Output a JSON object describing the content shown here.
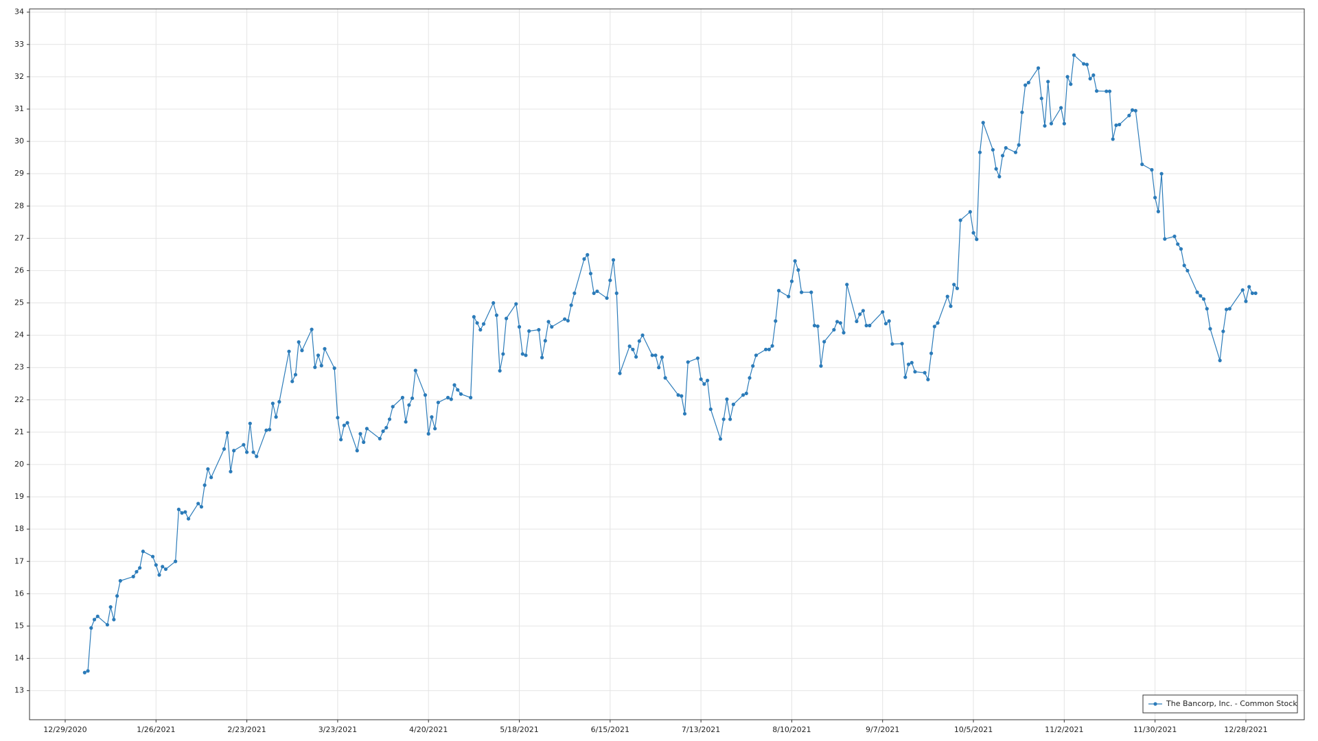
{
  "chart_data": {
    "type": "line",
    "x": [
      "1/4/2021",
      "1/5/2021",
      "1/6/2021",
      "1/7/2021",
      "1/8/2021",
      "1/11/2021",
      "1/12/2021",
      "1/13/2021",
      "1/14/2021",
      "1/15/2021",
      "1/19/2021",
      "1/20/2021",
      "1/21/2021",
      "1/22/2021",
      "1/25/2021",
      "1/26/2021",
      "1/27/2021",
      "1/28/2021",
      "1/29/2021",
      "2/1/2021",
      "2/2/2021",
      "2/3/2021",
      "2/4/2021",
      "2/5/2021",
      "2/8/2021",
      "2/9/2021",
      "2/10/2021",
      "2/11/2021",
      "2/12/2021",
      "2/16/2021",
      "2/17/2021",
      "2/18/2021",
      "2/19/2021",
      "2/22/2021",
      "2/23/2021",
      "2/24/2021",
      "2/25/2021",
      "2/26/2021",
      "3/1/2021",
      "3/2/2021",
      "3/3/2021",
      "3/4/2021",
      "3/5/2021",
      "3/8/2021",
      "3/9/2021",
      "3/10/2021",
      "3/11/2021",
      "3/12/2021",
      "3/15/2021",
      "3/16/2021",
      "3/17/2021",
      "3/18/2021",
      "3/19/2021",
      "3/22/2021",
      "3/23/2021",
      "3/24/2021",
      "3/25/2021",
      "3/26/2021",
      "3/29/2021",
      "3/30/2021",
      "3/31/2021",
      "4/1/2021",
      "4/5/2021",
      "4/6/2021",
      "4/7/2021",
      "4/8/2021",
      "4/9/2021",
      "4/12/2021",
      "4/13/2021",
      "4/14/2021",
      "4/15/2021",
      "4/16/2021",
      "4/19/2021",
      "4/20/2021",
      "4/21/2021",
      "4/22/2021",
      "4/23/2021",
      "4/26/2021",
      "4/27/2021",
      "4/28/2021",
      "4/29/2021",
      "4/30/2021",
      "5/3/2021",
      "5/4/2021",
      "5/5/2021",
      "5/6/2021",
      "5/7/2021",
      "5/10/2021",
      "5/11/2021",
      "5/12/2021",
      "5/13/2021",
      "5/14/2021",
      "5/17/2021",
      "5/18/2021",
      "5/19/2021",
      "5/20/2021",
      "5/21/2021",
      "5/24/2021",
      "5/25/2021",
      "5/26/2021",
      "5/27/2021",
      "5/28/2021",
      "6/1/2021",
      "6/2/2021",
      "6/3/2021",
      "6/4/2021",
      "6/7/2021",
      "6/8/2021",
      "6/9/2021",
      "6/10/2021",
      "6/11/2021",
      "6/14/2021",
      "6/15/2021",
      "6/16/2021",
      "6/17/2021",
      "6/18/2021",
      "6/21/2021",
      "6/22/2021",
      "6/23/2021",
      "6/24/2021",
      "6/25/2021",
      "6/28/2021",
      "6/29/2021",
      "6/30/2021",
      "7/1/2021",
      "7/2/2021",
      "7/6/2021",
      "7/7/2021",
      "7/8/2021",
      "7/9/2021",
      "7/12/2021",
      "7/13/2021",
      "7/14/2021",
      "7/15/2021",
      "7/16/2021",
      "7/19/2021",
      "7/20/2021",
      "7/21/2021",
      "7/22/2021",
      "7/23/2021",
      "7/26/2021",
      "7/27/2021",
      "7/28/2021",
      "7/29/2021",
      "7/30/2021",
      "8/2/2021",
      "8/3/2021",
      "8/4/2021",
      "8/5/2021",
      "8/6/2021",
      "8/9/2021",
      "8/10/2021",
      "8/11/2021",
      "8/12/2021",
      "8/13/2021",
      "8/16/2021",
      "8/17/2021",
      "8/18/2021",
      "8/19/2021",
      "8/20/2021",
      "8/23/2021",
      "8/24/2021",
      "8/25/2021",
      "8/26/2021",
      "8/27/2021",
      "8/30/2021",
      "8/31/2021",
      "9/1/2021",
      "9/2/2021",
      "9/3/2021",
      "9/7/2021",
      "9/8/2021",
      "9/9/2021",
      "9/10/2021",
      "9/13/2021",
      "9/14/2021",
      "9/15/2021",
      "9/16/2021",
      "9/17/2021",
      "9/20/2021",
      "9/21/2021",
      "9/22/2021",
      "9/23/2021",
      "9/24/2021",
      "9/27/2021",
      "9/28/2021",
      "9/29/2021",
      "9/30/2021",
      "10/1/2021",
      "10/4/2021",
      "10/5/2021",
      "10/6/2021",
      "10/7/2021",
      "10/8/2021",
      "10/11/2021",
      "10/12/2021",
      "10/13/2021",
      "10/14/2021",
      "10/15/2021",
      "10/18/2021",
      "10/19/2021",
      "10/20/2021",
      "10/21/2021",
      "10/22/2021",
      "10/25/2021",
      "10/26/2021",
      "10/27/2021",
      "10/28/2021",
      "10/29/2021",
      "11/1/2021",
      "11/2/2021",
      "11/3/2021",
      "11/4/2021",
      "11/5/2021",
      "11/8/2021",
      "11/9/2021",
      "11/10/2021",
      "11/11/2021",
      "11/12/2021",
      "11/15/2021",
      "11/16/2021",
      "11/17/2021",
      "11/18/2021",
      "11/19/2021",
      "11/22/2021",
      "11/23/2021",
      "11/24/2021",
      "11/26/2021",
      "11/29/2021",
      "11/30/2021",
      "12/1/2021",
      "12/2/2021",
      "12/3/2021",
      "12/6/2021",
      "12/7/2021",
      "12/8/2021",
      "12/9/2021",
      "12/10/2021",
      "12/13/2021",
      "12/14/2021",
      "12/15/2021",
      "12/16/2021",
      "12/17/2021",
      "12/20/2021",
      "12/21/2021",
      "12/22/2021",
      "12/23/2021",
      "12/27/2021",
      "12/28/2021",
      "12/29/2021",
      "12/30/2021",
      "12/31/2021"
    ],
    "series": [
      {
        "name": "The Bancorp, Inc. - Common Stock",
        "color": "#2b7bb9",
        "values": [
          13.56,
          13.61,
          14.94,
          15.2,
          15.3,
          15.04,
          15.59,
          15.2,
          15.93,
          16.4,
          16.53,
          16.68,
          16.8,
          17.31,
          17.15,
          16.89,
          16.58,
          16.84,
          16.76,
          17.0,
          18.61,
          18.5,
          18.53,
          18.32,
          18.79,
          18.69,
          19.36,
          19.86,
          19.6,
          20.48,
          20.98,
          19.78,
          20.43,
          20.61,
          20.38,
          21.27,
          20.38,
          20.25,
          21.06,
          21.08,
          21.89,
          21.47,
          21.94,
          23.5,
          22.57,
          22.78,
          23.79,
          23.53,
          24.18,
          23.01,
          23.38,
          23.06,
          23.58,
          22.98,
          21.45,
          20.77,
          21.21,
          21.29,
          20.43,
          20.95,
          20.69,
          21.11,
          20.8,
          21.03,
          21.14,
          21.4,
          21.79,
          22.07,
          21.32,
          21.84,
          22.05,
          22.91,
          22.15,
          20.95,
          21.47,
          21.11,
          21.92,
          22.07,
          22.02,
          22.46,
          22.31,
          22.18,
          22.07,
          24.57,
          24.38,
          24.17,
          24.35,
          25.0,
          24.62,
          22.9,
          23.42,
          24.52,
          24.97,
          24.26,
          23.42,
          23.38,
          24.13,
          24.17,
          23.31,
          23.83,
          24.42,
          24.26,
          24.5,
          24.45,
          24.93,
          25.3,
          26.36,
          26.49,
          25.91,
          25.3,
          25.36,
          25.15,
          25.7,
          26.33,
          25.3,
          22.82,
          23.66,
          23.56,
          23.33,
          23.82,
          24.0,
          23.38,
          23.38,
          23.0,
          23.32,
          22.68,
          22.15,
          22.12,
          21.57,
          23.17,
          23.29,
          22.64,
          22.49,
          22.6,
          21.71,
          20.79,
          21.4,
          22.02,
          21.4,
          21.86,
          22.15,
          22.2,
          22.68,
          23.05,
          23.38,
          23.56,
          23.56,
          23.67,
          24.44,
          25.38,
          25.2,
          25.67,
          26.3,
          26.02,
          25.33,
          25.33,
          24.3,
          24.28,
          23.05,
          23.8,
          24.17,
          24.42,
          24.38,
          24.08,
          25.57,
          24.43,
          24.65,
          24.76,
          24.3,
          24.3,
          24.72,
          24.36,
          24.44,
          23.73,
          23.74,
          22.7,
          23.1,
          23.15,
          22.87,
          22.84,
          22.63,
          23.44,
          24.27,
          24.38,
          25.2,
          24.9,
          25.57,
          25.45,
          27.56,
          27.82,
          27.17,
          26.97,
          29.66,
          30.58,
          29.74,
          29.15,
          28.91,
          29.56,
          29.8,
          29.66,
          29.89,
          30.9,
          31.74,
          31.82,
          32.27,
          31.33,
          30.48,
          31.85,
          30.55,
          31.04,
          30.55,
          32.0,
          31.77,
          32.67,
          32.4,
          32.38,
          31.94,
          32.05,
          31.56,
          31.55,
          31.55,
          30.07,
          30.5,
          30.52,
          30.8,
          30.97,
          30.95,
          29.29,
          29.12,
          28.26,
          27.83,
          29.0,
          26.98,
          27.06,
          26.82,
          26.67,
          26.16,
          26.0,
          25.33,
          25.22,
          25.12,
          24.82,
          24.2,
          23.22,
          24.12,
          24.8,
          24.82,
          25.4,
          25.05,
          25.5,
          25.3,
          25.3
        ]
      }
    ],
    "xlim": [
      "12/18/2020",
      "1/15/2022"
    ],
    "xticks": [
      "12/29/2020",
      "1/26/2021",
      "2/23/2021",
      "3/23/2021",
      "4/20/2021",
      "5/18/2021",
      "6/15/2021",
      "7/13/2021",
      "8/10/2021",
      "9/7/2021",
      "10/5/2021",
      "11/2/2021",
      "11/30/2021",
      "12/28/2021"
    ],
    "ylim": [
      12.1,
      34.1
    ],
    "yticks": [
      13,
      14,
      15,
      16,
      17,
      18,
      19,
      20,
      21,
      22,
      23,
      24,
      25,
      26,
      27,
      28,
      29,
      30,
      31,
      32,
      33,
      34
    ],
    "grid": true,
    "legend": "lower right"
  }
}
